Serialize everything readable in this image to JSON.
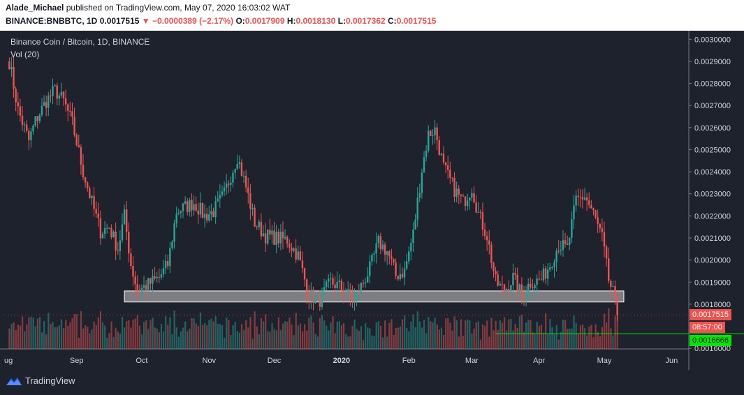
{
  "header": {
    "author": "Alade_Michael",
    "published_text": "published on TradingView.com, May 07, 2020 16:03:02 WAT",
    "symbol_line": "BINANCE:BNBBTC, 1D",
    "last": "0.0017515",
    "change_arrow": "▼",
    "change": "−0.0000389 (−2.17%)",
    "o_label": "O:",
    "o_value": "0.0017909",
    "h_label": "H:",
    "h_value": "0.0018130",
    "l_label": "L:",
    "l_value": "0.0017362",
    "c_label": "C:",
    "c_value": "0.0017515"
  },
  "legend": {
    "title": "Binance Coin / Bitcoin, 1D, BINANCE",
    "volume": "Vol (20)"
  },
  "price_tags": {
    "last_price": "0.0017515",
    "countdown": "08:57:00",
    "support_level": "0.0016666"
  },
  "footer": {
    "brand": "TradingView"
  },
  "colors": {
    "background": "#1e222d",
    "up": "#26a69a",
    "down": "#ef5350",
    "support_line": "#00e600",
    "zone_fill": "#9e9e9e"
  },
  "chart_data": {
    "type": "candlestick",
    "ylim": [
      0.00161,
      0.00302
    ],
    "y_ticks": [
      "0.0030000",
      "0.0029000",
      "0.0028000",
      "0.0027000",
      "0.0026000",
      "0.0025000",
      "0.0024000",
      "0.0023000",
      "0.0022000",
      "0.0021000",
      "0.0020000",
      "0.0019000",
      "0.0018000",
      "0.0016000"
    ],
    "x_ticks": [
      "ug",
      "Sep",
      "Oct",
      "Nov",
      "Dec",
      "2020",
      "Feb",
      "Mar",
      "Apr",
      "May",
      "Jun"
    ],
    "support_zone": [
      0.00181,
      0.00186
    ],
    "support_line": 0.0016666,
    "last_close": 0.0017515,
    "close_path": [
      [
        "2019-08-01",
        0.0029
      ],
      [
        "2019-08-05",
        0.00268
      ],
      [
        "2019-08-10",
        0.00254
      ],
      [
        "2019-08-13",
        0.00263
      ],
      [
        "2019-08-18",
        0.00272
      ],
      [
        "2019-08-22",
        0.00277
      ],
      [
        "2019-08-26",
        0.00272
      ],
      [
        "2019-08-30",
        0.00262
      ],
      [
        "2019-09-04",
        0.0024
      ],
      [
        "2019-09-08",
        0.00226
      ],
      [
        "2019-09-12",
        0.00213
      ],
      [
        "2019-09-16",
        0.00215
      ],
      [
        "2019-09-20",
        0.00205
      ],
      [
        "2019-09-23",
        0.0022
      ],
      [
        "2019-09-26",
        0.00198
      ],
      [
        "2019-09-29",
        0.00186
      ],
      [
        "2019-10-04",
        0.00189
      ],
      [
        "2019-10-09",
        0.00192
      ],
      [
        "2019-10-13",
        0.00198
      ],
      [
        "2019-10-17",
        0.00222
      ],
      [
        "2019-10-21",
        0.00224
      ],
      [
        "2019-10-25",
        0.00226
      ],
      [
        "2019-10-30",
        0.0022
      ],
      [
        "2019-11-03",
        0.00222
      ],
      [
        "2019-11-08",
        0.0023
      ],
      [
        "2019-11-14",
        0.00247
      ],
      [
        "2019-11-18",
        0.00233
      ],
      [
        "2019-11-22",
        0.00217
      ],
      [
        "2019-11-27",
        0.00211
      ],
      [
        "2019-12-02",
        0.0021
      ],
      [
        "2019-12-07",
        0.00209
      ],
      [
        "2019-12-12",
        0.00202
      ],
      [
        "2019-12-17",
        0.00184
      ],
      [
        "2019-12-22",
        0.00182
      ],
      [
        "2019-12-27",
        0.0019
      ],
      [
        "2019-12-31",
        0.00188
      ],
      [
        "2020-01-04",
        0.00184
      ],
      [
        "2020-01-07",
        0.00182
      ],
      [
        "2020-01-11",
        0.0019
      ],
      [
        "2020-01-14",
        0.00196
      ],
      [
        "2020-01-18",
        0.00208
      ],
      [
        "2020-01-22",
        0.00204
      ],
      [
        "2020-01-26",
        0.00193
      ],
      [
        "2020-01-30",
        0.00195
      ],
      [
        "2020-02-03",
        0.00212
      ],
      [
        "2020-02-07",
        0.00241
      ],
      [
        "2020-02-10",
        0.00257
      ],
      [
        "2020-02-13",
        0.00259
      ],
      [
        "2020-02-17",
        0.00242
      ],
      [
        "2020-02-22",
        0.00232
      ],
      [
        "2020-02-26",
        0.00226
      ],
      [
        "2020-03-01",
        0.00233
      ],
      [
        "2020-03-04",
        0.00221
      ],
      [
        "2020-03-08",
        0.00211
      ],
      [
        "2020-03-12",
        0.0019
      ],
      [
        "2020-03-16",
        0.00186
      ],
      [
        "2020-03-20",
        0.00192
      ],
      [
        "2020-03-24",
        0.00184
      ],
      [
        "2020-03-28",
        0.0019
      ],
      [
        "2020-04-02",
        0.00191
      ],
      [
        "2020-04-06",
        0.00198
      ],
      [
        "2020-04-10",
        0.00207
      ],
      [
        "2020-04-14",
        0.00205
      ],
      [
        "2020-04-18",
        0.00227
      ],
      [
        "2020-04-22",
        0.00229
      ],
      [
        "2020-04-26",
        0.00221
      ],
      [
        "2020-04-30",
        0.0021
      ],
      [
        "2020-05-03",
        0.00191
      ],
      [
        "2020-05-05",
        0.00185
      ],
      [
        "2020-05-07",
        0.00175
      ]
    ]
  }
}
